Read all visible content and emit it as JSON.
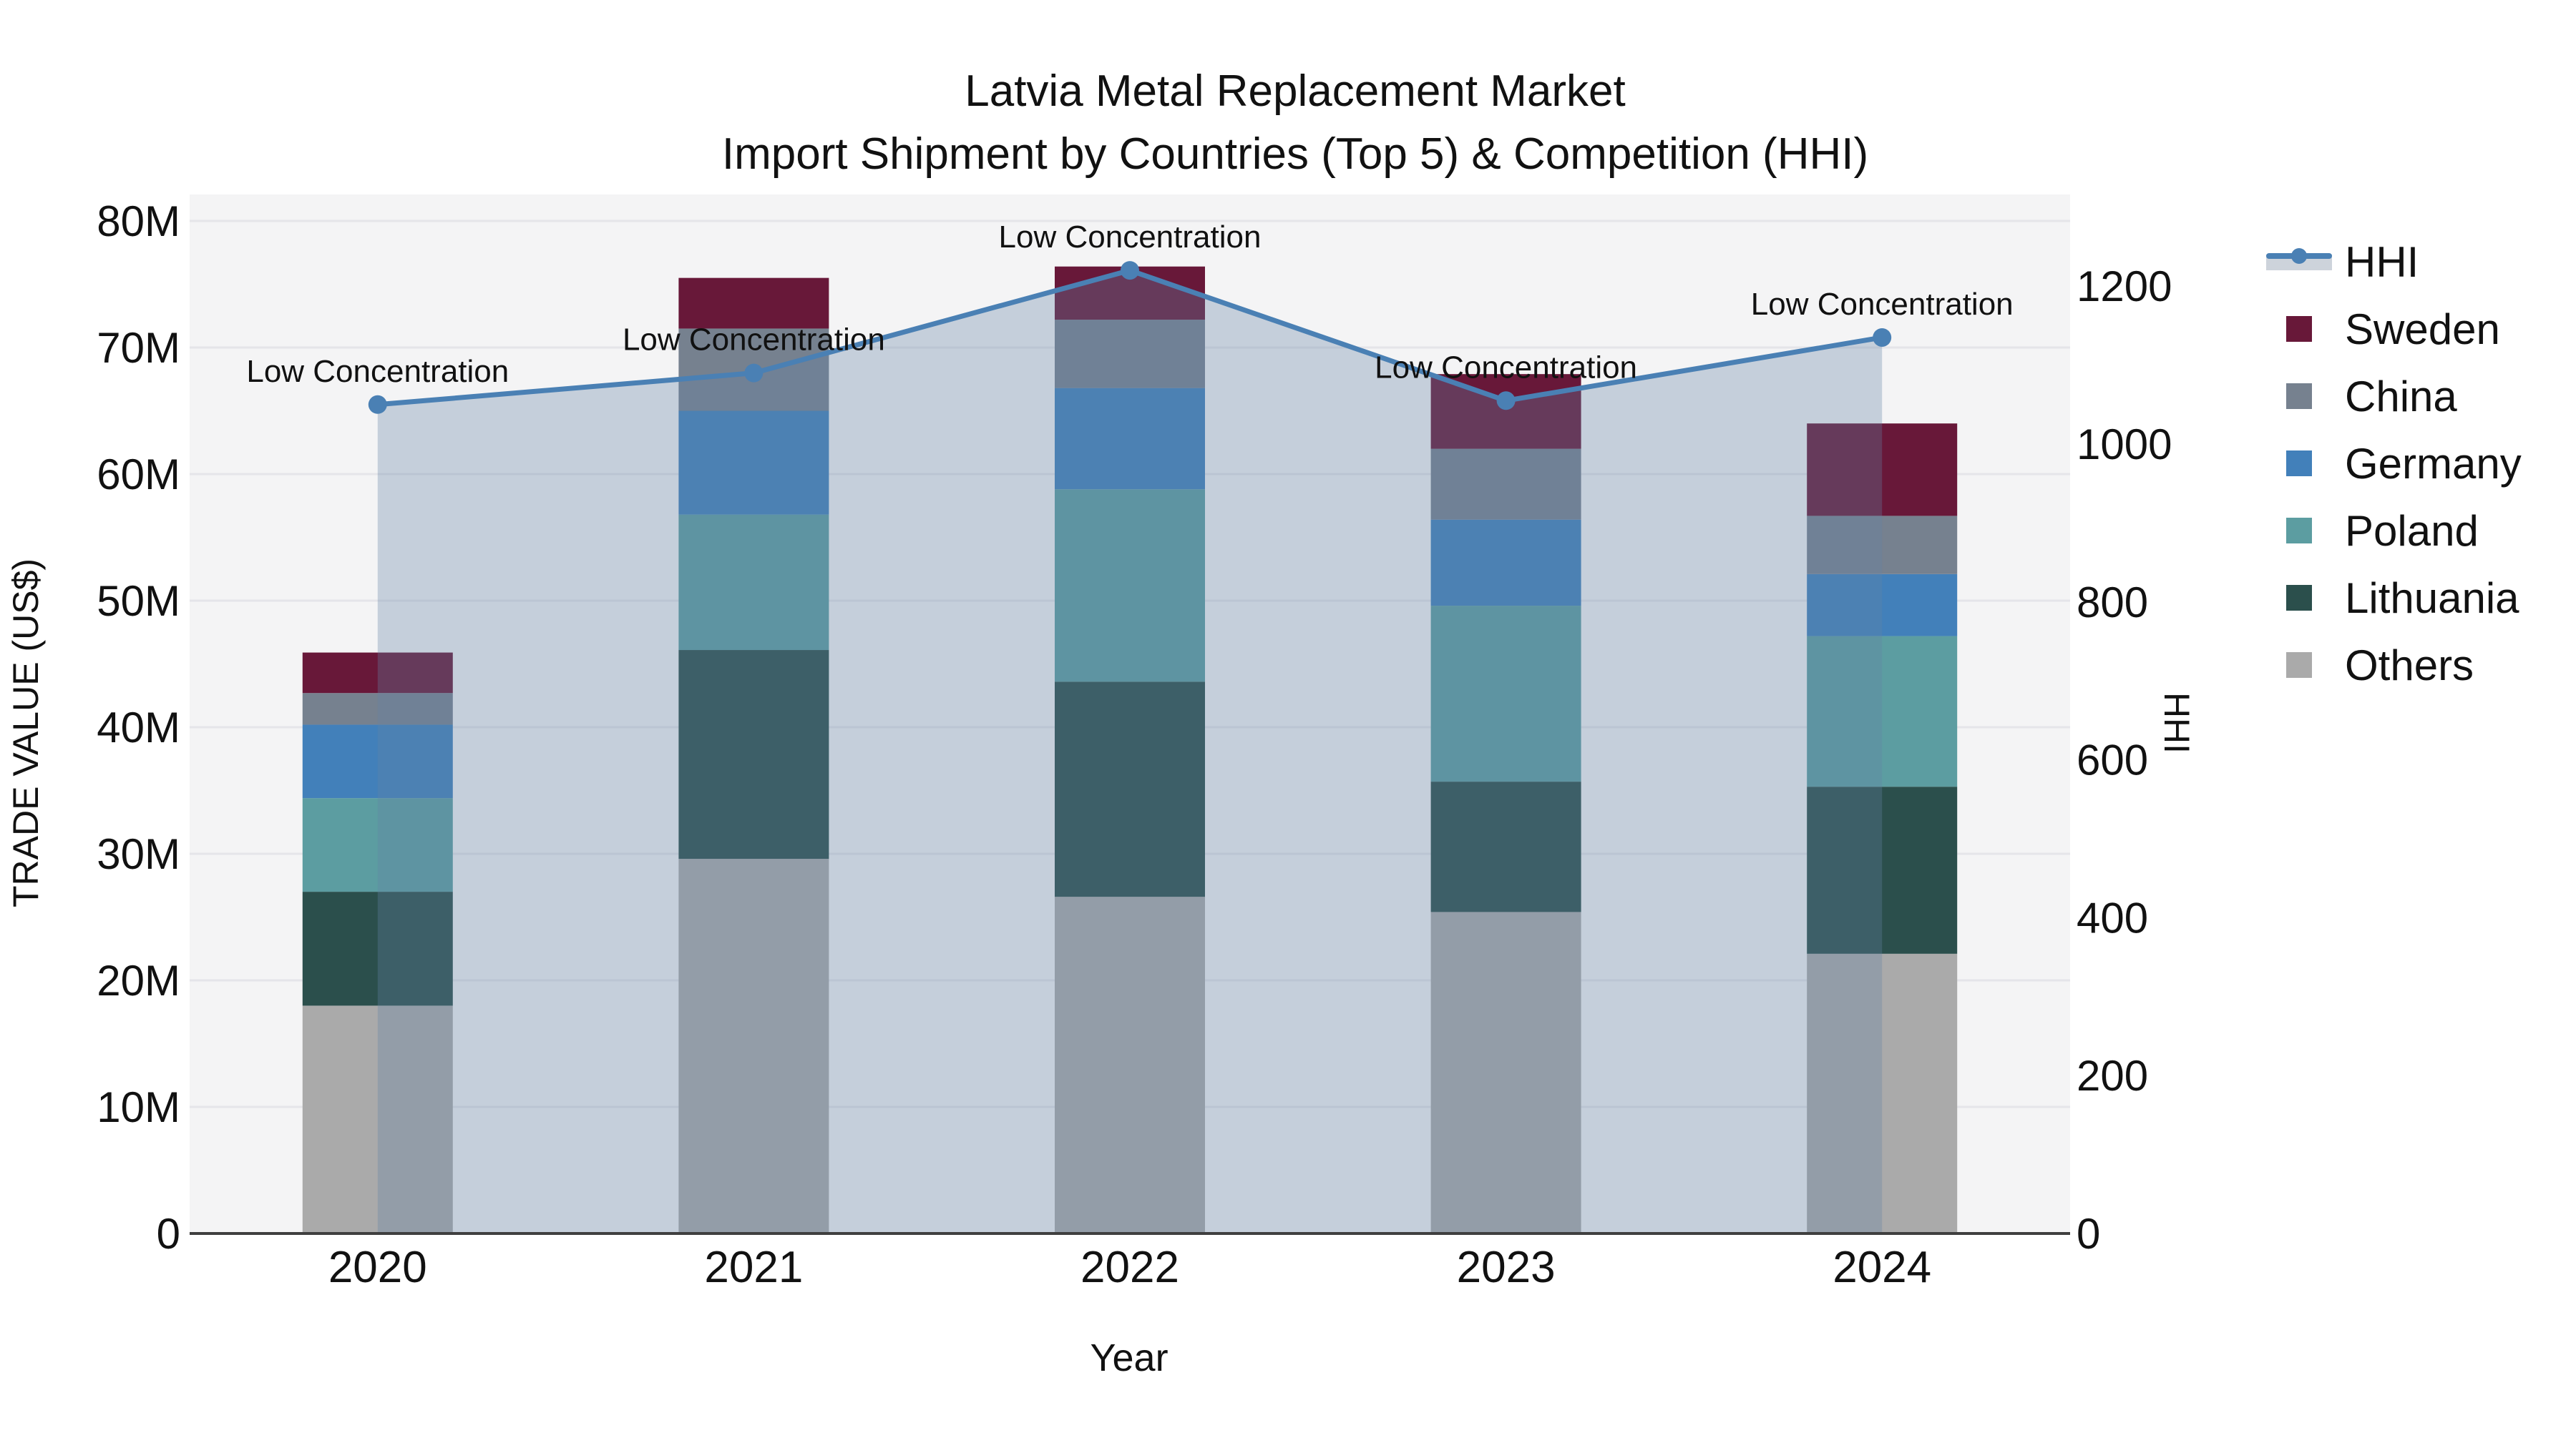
{
  "title": {
    "line1": "Latvia Metal Replacement Market",
    "line2": "Import Shipment by Countries (Top 5) & Competition (HHI)"
  },
  "axes": {
    "x": {
      "title": "Year",
      "tick_labels": [
        "2020",
        "2021",
        "2022",
        "2023",
        "2024"
      ]
    },
    "y_left": {
      "title": "TRADE VALUE (US$)",
      "tick_labels": [
        "0",
        "10M",
        "20M",
        "30M",
        "40M",
        "50M",
        "60M",
        "70M",
        "80M"
      ],
      "range_millions": [
        0,
        80
      ]
    },
    "y_right": {
      "title": "HHI",
      "tick_labels": [
        "0",
        "200",
        "400",
        "600",
        "800",
        "1000",
        "1200"
      ],
      "range": [
        0,
        1290
      ]
    }
  },
  "legend": {
    "items": [
      {
        "id": "hhi",
        "label": "HHI",
        "type": "line",
        "color": "#4a80b4"
      },
      {
        "id": "sweden",
        "label": "Sweden",
        "type": "swatch",
        "color": "#681839"
      },
      {
        "id": "china",
        "label": "China",
        "type": "swatch",
        "color": "#76818f"
      },
      {
        "id": "germany",
        "label": "Germany",
        "type": "swatch",
        "color": "#4280ba"
      },
      {
        "id": "poland",
        "label": "Poland",
        "type": "swatch",
        "color": "#5c9da1"
      },
      {
        "id": "lithuania",
        "label": "Lithuania",
        "type": "swatch",
        "color": "#2b4f4c"
      },
      {
        "id": "others",
        "label": "Others",
        "type": "swatch",
        "color": "#aaaaaa"
      }
    ]
  },
  "annotations": [
    {
      "year": "2020",
      "text": "Low Concentration"
    },
    {
      "year": "2021",
      "text": "Low Concentration"
    },
    {
      "year": "2022",
      "text": "Low Concentration"
    },
    {
      "year": "2023",
      "text": "Low Concentration"
    },
    {
      "year": "2024",
      "text": "Low Concentration"
    }
  ],
  "chart_data": {
    "type": "bar+line",
    "title": "Latvia Metal Replacement Market / Import Shipment by Countries (Top 5) & Competition (HHI)",
    "categories": [
      "2020",
      "2021",
      "2022",
      "2023",
      "2024"
    ],
    "units": "millions US$",
    "stack_order_bottom_to_top": [
      "Others",
      "Lithuania",
      "Poland",
      "Germany",
      "China",
      "Sweden"
    ],
    "series": [
      {
        "name": "Others",
        "color": "#aaaaaa",
        "values": [
          18.0,
          29.6,
          26.6,
          25.4,
          22.1
        ]
      },
      {
        "name": "Lithuania",
        "color": "#2b4f4c",
        "values": [
          9.0,
          16.5,
          17.0,
          10.3,
          13.2
        ]
      },
      {
        "name": "Poland",
        "color": "#5c9da1",
        "values": [
          7.4,
          10.7,
          15.2,
          13.9,
          11.9
        ]
      },
      {
        "name": "Germany",
        "color": "#4280ba",
        "values": [
          5.8,
          8.2,
          8.0,
          6.8,
          4.9
        ]
      },
      {
        "name": "China",
        "color": "#76818f",
        "values": [
          2.5,
          6.5,
          5.4,
          5.6,
          4.6
        ]
      },
      {
        "name": "Sweden",
        "color": "#681839",
        "values": [
          3.2,
          4.0,
          4.2,
          5.9,
          7.3
        ]
      }
    ],
    "bar_totals_millions": [
      45.9,
      75.5,
      76.4,
      67.9,
      64.0
    ],
    "line_series": {
      "name": "HHI",
      "axis": "right",
      "color": "#4a80b4",
      "area_fill": "rgba(100,130,165,0.32)",
      "values": [
        1050,
        1090,
        1220,
        1055,
        1135
      ],
      "point_labels": [
        "Low Concentration",
        "Low Concentration",
        "Low Concentration",
        "Low Concentration",
        "Low Concentration"
      ]
    },
    "xlabel": "Year",
    "ylabel_left": "TRADE VALUE (US$)",
    "ylabel_right": "HHI",
    "ylim_left_millions": [
      0,
      80
    ],
    "ylim_right": [
      0,
      1290
    ],
    "grid": "horizontal",
    "legend_position": "right"
  }
}
